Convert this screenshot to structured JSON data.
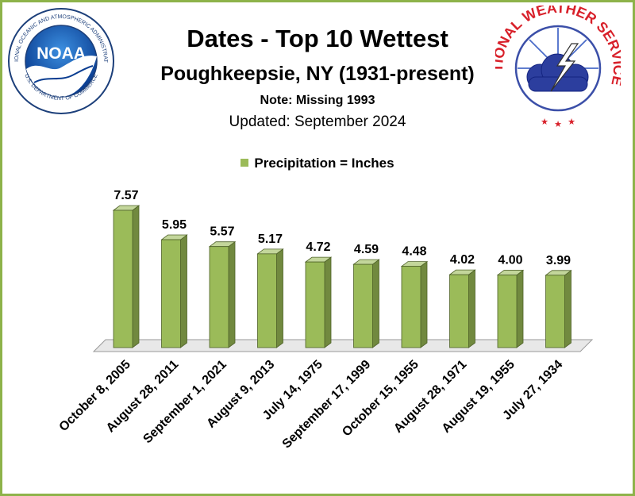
{
  "logos": {
    "noaa": {
      "text": "NOAA",
      "ring_top": "NATIONAL OCEANIC AND ATMOSPHERIC ADMINISTRATION",
      "ring_bottom": "U.S. DEPARTMENT OF COMMERCE"
    },
    "nws": {
      "ring_text": "NATIONAL WEATHER SERVICE"
    }
  },
  "colors": {
    "bar_front": "#9bbb59",
    "bar_side": "#71893f",
    "bar_top": "#c3d69b",
    "floor": "#e8e8e8",
    "frame": "#8db34a"
  },
  "chart_data": {
    "type": "bar",
    "title": "Dates - Top 10 Wettest",
    "subtitle": "Poughkeepsie, NY (1931-present)",
    "note": "Note: Missing 1993",
    "updated": "Updated:  September 2024",
    "legend": {
      "label": "Precipitation = Inches",
      "position": "top"
    },
    "categories": [
      "October 8, 2005",
      "August 28, 2011",
      "September 1, 2021",
      "August 9, 2013",
      "July 14, 1975",
      "September 17, 1999",
      "October 15, 1955",
      "August 28, 1971",
      "August 19, 1955",
      "July 27, 1934"
    ],
    "values": [
      7.57,
      5.95,
      5.57,
      5.17,
      4.72,
      4.59,
      4.48,
      4.02,
      4.0,
      3.99
    ],
    "data_labels": [
      "7.57",
      "5.95",
      "5.57",
      "5.17",
      "4.72",
      "4.59",
      "4.48",
      "4.02",
      "4.00",
      "3.99"
    ],
    "grid": false,
    "three_d": true,
    "ylim": [
      0,
      7.57
    ]
  }
}
